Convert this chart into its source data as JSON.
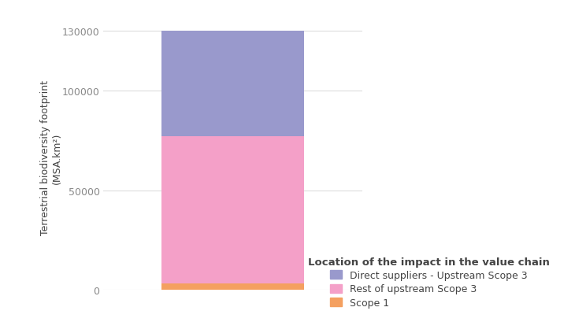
{
  "scope1": 3000,
  "rest_upstream": 74000,
  "direct_suppliers": 53000,
  "colors": {
    "scope1": "#f4a060",
    "rest_upstream": "#f4a0c8",
    "direct_suppliers": "#9999cc"
  },
  "legend_labels": {
    "direct_suppliers": "Direct suppliers - Upstream Scope 3",
    "rest_upstream": "Rest of upstream Scope 3",
    "scope1": "Scope 1"
  },
  "legend_title": "Location of the impact in the value chain",
  "ylabel_line1": "Terrestrial biodiversity footprint",
  "ylabel_line2": "(MSA.km²)",
  "yticks": [
    0,
    50000,
    100000,
    130000
  ],
  "ylim": [
    0,
    133000
  ],
  "bar_width": 0.55,
  "background_color": "#ffffff",
  "grid_color": "#dddddd",
  "text_color": "#444444",
  "tick_color": "#888888"
}
